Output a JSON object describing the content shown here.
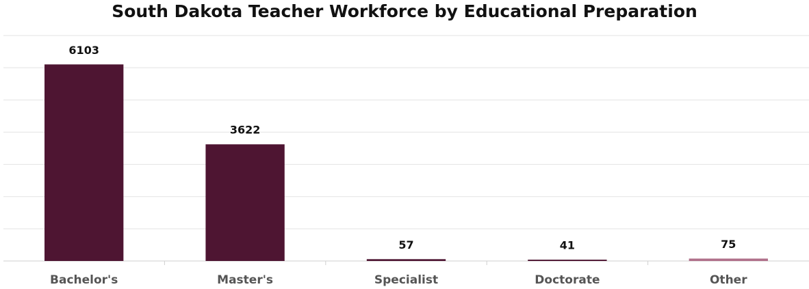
{
  "chart_data": {
    "type": "bar",
    "title": "South Dakota Teacher Workforce by Educational Preparation",
    "categories": [
      "Bachelor's",
      "Master's",
      "Specialist",
      "Doctorate",
      "Other"
    ],
    "values": [
      6103,
      3622,
      57,
      41,
      75
    ],
    "colors": [
      "#4e1532",
      "#4e1532",
      "#4e1532",
      "#4e1532",
      "#b0708a"
    ],
    "ylim": [
      0,
      7000
    ],
    "yticks": [
      0,
      1000,
      2000,
      3000,
      4000,
      5000,
      6000,
      7000
    ],
    "grid": true
  }
}
